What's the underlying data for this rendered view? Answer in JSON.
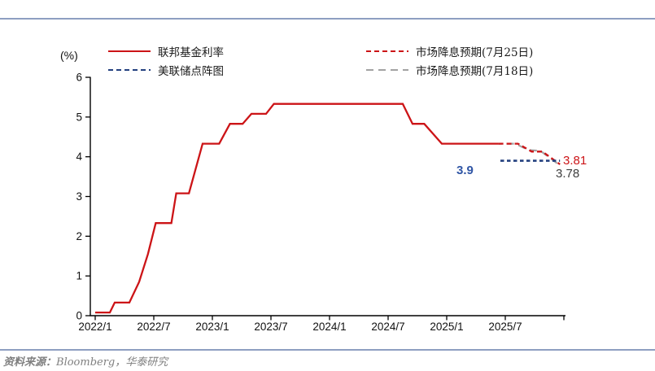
{
  "page": {
    "source_note_prefix": "资料来源：",
    "source_note_body": "Bloomberg，华泰研究"
  },
  "colors": {
    "accent_rule": "#8e9fc1",
    "fed_funds_red": "#cc1417",
    "dot_plot_navy": "#23407f",
    "forecast_gray": "#a3a3a3",
    "annotation_blue": "#2f55a5",
    "annotation_dark": "#3d3d3d"
  },
  "chart_data": {
    "type": "line",
    "title": "",
    "xlabel": "",
    "ylabel": "(%)",
    "unit_label": "(%)",
    "ylim": [
      0,
      6
    ],
    "yticks": [
      0,
      1,
      2,
      3,
      4,
      5,
      6
    ],
    "xtick_labels": [
      "2022/1",
      "2022/7",
      "2023/1",
      "2023/7",
      "2024/1",
      "2024/7",
      "2025/1",
      "2025/7"
    ],
    "months_per_tick": 6,
    "x_axis_end_month": 48,
    "grid": false,
    "legend_position": "top, two columns inside plot",
    "series": [
      {
        "name": "联邦基金利率",
        "color": "#cc1417",
        "line_style": "solid",
        "points": [
          [
            0,
            0.08
          ],
          [
            1.5,
            0.08
          ],
          [
            2.0,
            0.33
          ],
          [
            3.5,
            0.33
          ],
          [
            4.5,
            0.85
          ],
          [
            5.4,
            1.55
          ],
          [
            6.2,
            2.33
          ],
          [
            7.8,
            2.33
          ],
          [
            8.3,
            3.08
          ],
          [
            9.6,
            3.08
          ],
          [
            11.0,
            4.33
          ],
          [
            12.7,
            4.33
          ],
          [
            13.8,
            4.83
          ],
          [
            15.1,
            4.83
          ],
          [
            16.0,
            5.08
          ],
          [
            17.5,
            5.08
          ],
          [
            18.3,
            5.33
          ],
          [
            31.5,
            5.33
          ],
          [
            32.5,
            4.83
          ],
          [
            33.7,
            4.83
          ],
          [
            35.5,
            4.33
          ],
          [
            41.3,
            4.33
          ]
        ]
      },
      {
        "name": "美联储点阵图",
        "color": "#23407f",
        "line_style": "dashed",
        "points": [
          [
            41.5,
            3.9
          ],
          [
            47.6,
            3.9
          ]
        ]
      },
      {
        "name": "市场降息预期(7月25日)",
        "color": "#cc1417",
        "line_style": "dashed",
        "points": [
          [
            41.3,
            4.33
          ],
          [
            43.3,
            4.33
          ],
          [
            44.7,
            4.13
          ],
          [
            45.8,
            4.13
          ],
          [
            47.6,
            3.81
          ]
        ]
      },
      {
        "name": "市场降息预期(7月18日)",
        "color": "#a3a3a3",
        "line_style": "dashed-long",
        "points": [
          [
            41.3,
            4.33
          ],
          [
            43.0,
            4.33
          ],
          [
            44.4,
            4.17
          ],
          [
            45.6,
            4.15
          ],
          [
            47.6,
            3.78
          ]
        ]
      }
    ],
    "annotations": [
      {
        "text": "3.9",
        "color": "#2f55a5",
        "refers_to": "美联储点阵图"
      },
      {
        "text": "3.81",
        "color": "#cc1417",
        "refers_to": "市场降息预期(7月25日)"
      },
      {
        "text": "3.78",
        "color": "#3d3d3d",
        "refers_to": "市场降息预期(7月18日)"
      }
    ]
  }
}
